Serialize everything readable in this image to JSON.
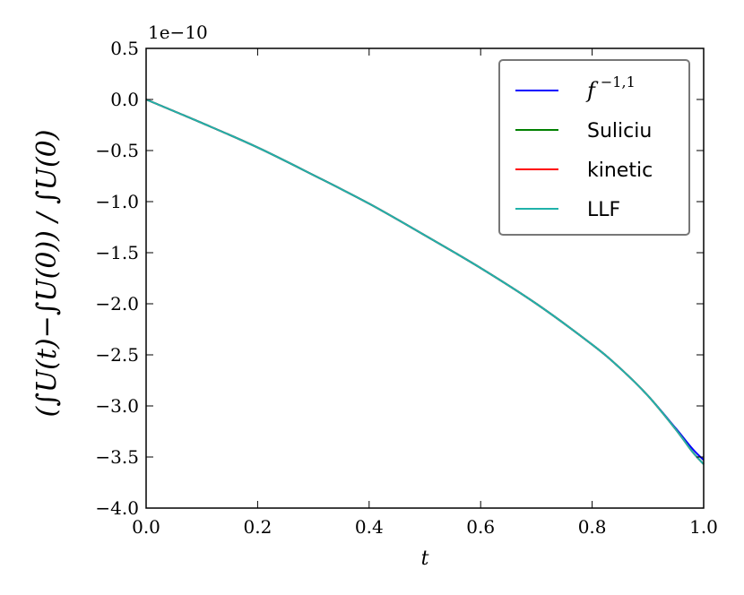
{
  "chart_data": {
    "type": "line",
    "title": "",
    "xlabel": "t",
    "ylabel": "(∫U(t)−∫U(0)) / ∫U(0)",
    "offset_text": "1e−10",
    "xlim": [
      0.0,
      1.0
    ],
    "ylim": [
      -4.0,
      0.5
    ],
    "x_ticks": [
      "0.0",
      "0.2",
      "0.4",
      "0.6",
      "0.8",
      "1.0"
    ],
    "y_ticks": [
      "0.5",
      "0.0",
      "−0.5",
      "−1.0",
      "−1.5",
      "−2.0",
      "−2.5",
      "−3.0",
      "−3.5",
      "−4.0"
    ],
    "grid": false,
    "legend_position": "top-right",
    "x": [
      0.0,
      0.1,
      0.2,
      0.3,
      0.4,
      0.5,
      0.6,
      0.7,
      0.8,
      0.85,
      0.9,
      0.95,
      0.98,
      1.0
    ],
    "series": [
      {
        "name": "f^{-1,1}",
        "label_main": "f",
        "label_sup": "−1,1",
        "color": "#0000ff",
        "values": [
          0.0,
          -0.23,
          -0.47,
          -0.74,
          -1.02,
          -1.33,
          -1.65,
          -2.0,
          -2.4,
          -2.63,
          -2.9,
          -3.22,
          -3.42,
          -3.53
        ]
      },
      {
        "name": "Suliciu",
        "color": "#008000",
        "values": [
          0.0,
          -0.23,
          -0.47,
          -0.74,
          -1.02,
          -1.33,
          -1.65,
          -2.0,
          -2.4,
          -2.63,
          -2.9,
          -3.23,
          -3.45,
          -3.57
        ]
      },
      {
        "name": "kinetic",
        "color": "#ff0000",
        "values": [
          0.0,
          -0.23,
          -0.47,
          -0.74,
          -1.02,
          -1.33,
          -1.65,
          -2.0,
          -2.4,
          -2.63,
          -2.9,
          -3.23,
          -3.45,
          -3.57
        ]
      },
      {
        "name": "LLF",
        "color": "#20b2aa",
        "values": [
          0.0,
          -0.23,
          -0.47,
          -0.74,
          -1.02,
          -1.33,
          -1.65,
          -2.0,
          -2.4,
          -2.63,
          -2.9,
          -3.23,
          -3.45,
          -3.57
        ]
      }
    ]
  }
}
